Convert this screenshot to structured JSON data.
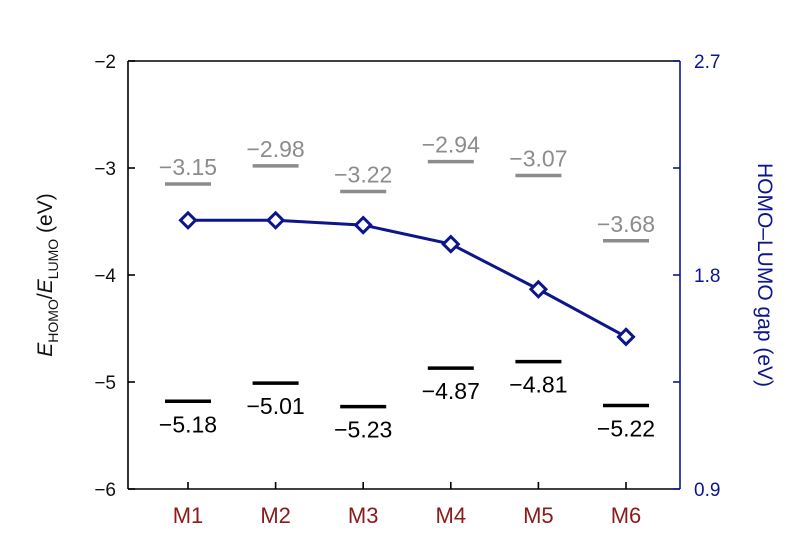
{
  "chart_data": {
    "type": "line",
    "categories": [
      "M1",
      "M2",
      "M3",
      "M4",
      "M5",
      "M6"
    ],
    "left_axis": {
      "label_parts": {
        "e1": "E",
        "sub1": "HOMO",
        "sep": "/",
        "e2": "E",
        "sub2": "LUMO",
        "unit": " (eV)"
      },
      "ylim": [
        -6,
        -2
      ],
      "ticks": [
        -6,
        -5,
        -4,
        -3,
        -2
      ],
      "tick_labels": [
        "−6",
        "−5",
        "−4",
        "−3",
        "−2"
      ]
    },
    "right_axis": {
      "label": "HOMO–LUMO gap (eV)",
      "ylim": [
        0.9,
        2.7
      ],
      "ticks": [
        0.9,
        1.8,
        2.7
      ],
      "tick_labels": [
        "0.9",
        "1.8",
        "2.7"
      ]
    },
    "series": [
      {
        "name": "LUMO",
        "axis": "left",
        "marker": "level-bar",
        "values": [
          -3.15,
          -2.98,
          -3.22,
          -2.94,
          -3.07,
          -3.68
        ],
        "labels": [
          "−3.15",
          "−2.98",
          "−3.22",
          "−2.94",
          "−3.07",
          "−3.68"
        ]
      },
      {
        "name": "HOMO",
        "axis": "left",
        "marker": "level-bar",
        "values": [
          -5.18,
          -5.01,
          -5.23,
          -4.87,
          -4.81,
          -5.22
        ],
        "labels": [
          "−5.18",
          "−5.01",
          "−5.23",
          "−4.87",
          "−4.81",
          "−5.22"
        ]
      },
      {
        "name": "HOMO–LUMO gap",
        "axis": "right",
        "marker": "diamond-line",
        "values": [
          2.03,
          2.03,
          2.01,
          1.93,
          1.74,
          1.54
        ]
      }
    ],
    "colors": {
      "lumo": "#8c8c8c",
      "homo": "#000000",
      "gap": "#0c158c",
      "category": "#8b1a1a",
      "axis": "#000000"
    }
  }
}
